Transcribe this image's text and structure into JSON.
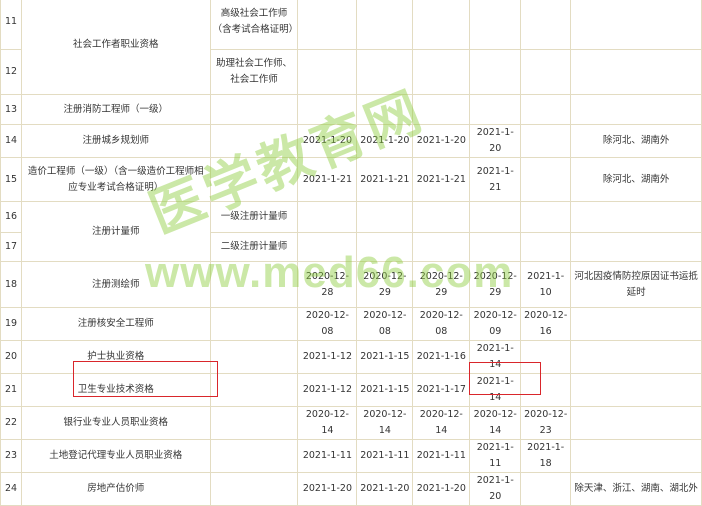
{
  "columns_count": 9,
  "rows": [
    {
      "cells": [
        {
          "t": "11"
        },
        {
          "t": "社会工作者职业资格",
          "rowspan": 2
        },
        {
          "t": "高级社会工作师（含考试合格证明）"
        },
        {
          "t": ""
        },
        {
          "t": ""
        },
        {
          "t": ""
        },
        {
          "t": ""
        },
        {
          "t": ""
        },
        {
          "t": ""
        }
      ]
    },
    {
      "cells": [
        {
          "t": "12"
        },
        {
          "t": "助理社会工作师、社会工作师"
        },
        {
          "t": ""
        },
        {
          "t": ""
        },
        {
          "t": ""
        },
        {
          "t": ""
        },
        {
          "t": ""
        },
        {
          "t": ""
        }
      ]
    },
    {
      "cells": [
        {
          "t": "13"
        },
        {
          "t": "注册消防工程师（一级）"
        },
        {
          "t": ""
        },
        {
          "t": ""
        },
        {
          "t": ""
        },
        {
          "t": ""
        },
        {
          "t": ""
        },
        {
          "t": ""
        },
        {
          "t": ""
        }
      ]
    },
    {
      "cells": [
        {
          "t": "14"
        },
        {
          "t": "注册城乡规划师"
        },
        {
          "t": ""
        },
        {
          "t": "2021-1-20"
        },
        {
          "t": "2021-1-20"
        },
        {
          "t": "2021-1-20"
        },
        {
          "t": "2021-1-20"
        },
        {
          "t": ""
        },
        {
          "t": "除河北、湖南外"
        }
      ]
    },
    {
      "cells": [
        {
          "t": "15"
        },
        {
          "t": "造价工程师（一级）（含一级造价工程师相应专业考试合格证明）"
        },
        {
          "t": ""
        },
        {
          "t": "2021-1-21"
        },
        {
          "t": "2021-1-21"
        },
        {
          "t": "2021-1-21"
        },
        {
          "t": "2021-1-21"
        },
        {
          "t": ""
        },
        {
          "t": "除河北、湖南外"
        }
      ]
    },
    {
      "cells": [
        {
          "t": "16"
        },
        {
          "t": "注册计量师",
          "rowspan": 2
        },
        {
          "t": "一级注册计量师"
        },
        {
          "t": ""
        },
        {
          "t": ""
        },
        {
          "t": ""
        },
        {
          "t": ""
        },
        {
          "t": ""
        },
        {
          "t": ""
        }
      ]
    },
    {
      "cells": [
        {
          "t": "17"
        },
        {
          "t": "二级注册计量师"
        },
        {
          "t": ""
        },
        {
          "t": ""
        },
        {
          "t": ""
        },
        {
          "t": ""
        },
        {
          "t": ""
        },
        {
          "t": ""
        }
      ]
    },
    {
      "cells": [
        {
          "t": "18"
        },
        {
          "t": "注册测绘师"
        },
        {
          "t": ""
        },
        {
          "t": "2020-12-28"
        },
        {
          "t": "2020-12-29"
        },
        {
          "t": "2020-12-29"
        },
        {
          "t": "2020-12-29"
        },
        {
          "t": "2021-1-10"
        },
        {
          "t": "河北因疫情防控原因证书运抵延时"
        }
      ]
    },
    {
      "cells": [
        {
          "t": "19"
        },
        {
          "t": "注册核安全工程师"
        },
        {
          "t": ""
        },
        {
          "t": "2020-12-08"
        },
        {
          "t": "2020-12-08"
        },
        {
          "t": "2020-12-08"
        },
        {
          "t": "2020-12-09"
        },
        {
          "t": "2020-12-16"
        },
        {
          "t": ""
        }
      ]
    },
    {
      "cells": [
        {
          "t": "20"
        },
        {
          "t": "护士执业资格"
        },
        {
          "t": ""
        },
        {
          "t": "2021-1-12"
        },
        {
          "t": "2021-1-15"
        },
        {
          "t": "2021-1-16"
        },
        {
          "t": "2021-1-14"
        },
        {
          "t": ""
        },
        {
          "t": ""
        }
      ]
    },
    {
      "cells": [
        {
          "t": "21"
        },
        {
          "t": "卫生专业技术资格"
        },
        {
          "t": ""
        },
        {
          "t": "2021-1-12"
        },
        {
          "t": "2021-1-15"
        },
        {
          "t": "2021-1-17"
        },
        {
          "t": "2021-1-14"
        },
        {
          "t": ""
        },
        {
          "t": ""
        }
      ]
    },
    {
      "cells": [
        {
          "t": "22"
        },
        {
          "t": "银行业专业人员职业资格"
        },
        {
          "t": ""
        },
        {
          "t": "2020-12-14"
        },
        {
          "t": "2020-12-14"
        },
        {
          "t": "2020-12-14"
        },
        {
          "t": "2020-12-14"
        },
        {
          "t": "2020-12-23"
        },
        {
          "t": ""
        }
      ]
    },
    {
      "cells": [
        {
          "t": "23"
        },
        {
          "t": "土地登记代理专业人员职业资格"
        },
        {
          "t": ""
        },
        {
          "t": "2021-1-11"
        },
        {
          "t": "2021-1-11"
        },
        {
          "t": "2021-1-11"
        },
        {
          "t": "2021-1-11"
        },
        {
          "t": "2021-1-18"
        },
        {
          "t": ""
        }
      ]
    },
    {
      "cells": [
        {
          "t": "24"
        },
        {
          "t": "房地产估价师"
        },
        {
          "t": ""
        },
        {
          "t": "2021-1-20"
        },
        {
          "t": "2021-1-20"
        },
        {
          "t": "2021-1-20"
        },
        {
          "t": "2021-1-20"
        },
        {
          "t": ""
        },
        {
          "t": "除天津、浙江、湖南、湖北外"
        }
      ]
    }
  ],
  "watermark": {
    "brand": "医学教育网",
    "url": "www.med66.com",
    "color": "#8ccd3c"
  },
  "highlight_color": "#d9262b"
}
